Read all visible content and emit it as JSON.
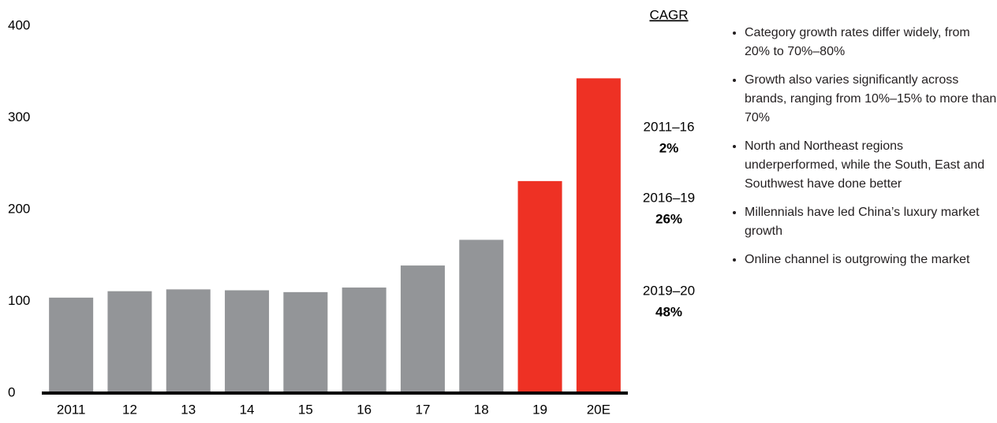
{
  "chart_data": {
    "type": "bar",
    "categories": [
      "2011",
      "12",
      "13",
      "14",
      "15",
      "16",
      "17",
      "18",
      "19",
      "20E"
    ],
    "values": [
      104,
      111,
      113,
      112,
      110,
      115,
      139,
      167,
      231,
      343
    ],
    "colors": [
      "#939598",
      "#939598",
      "#939598",
      "#939598",
      "#939598",
      "#939598",
      "#939598",
      "#939598",
      "#ee3124",
      "#ee3124"
    ],
    "ylim": [
      0,
      400
    ],
    "yticks": [
      0,
      100,
      200,
      300,
      400
    ],
    "grid": false,
    "cagr": {
      "title": "CAGR",
      "periods": [
        {
          "label": "2011–16",
          "value": "2%"
        },
        {
          "label": "2016–19",
          "value": "26%"
        },
        {
          "label": "2019–20",
          "value": "48%"
        }
      ]
    },
    "bullets": [
      "Category growth rates differ widely, from 20% to 70%–80%",
      "Growth also varies significantly across brands, ranging from 10%–15% to more than 70%",
      "North and Northeast regions underperformed, while the South, East and Southwest have done better",
      "Millennials have led China’s luxury market growth",
      "Online channel is outgrowing the market"
    ]
  }
}
